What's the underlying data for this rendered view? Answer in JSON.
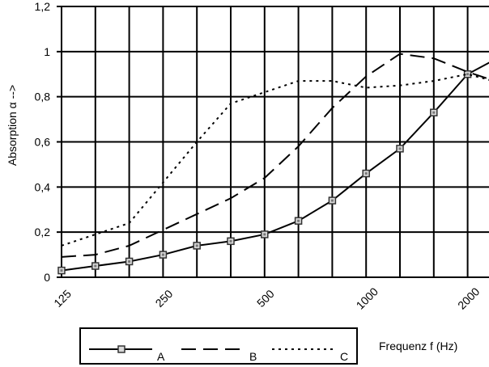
{
  "chart_data": {
    "type": "line",
    "xlabel": "Frequenz  f (Hz)",
    "ylabel": "Absorption  α -->",
    "y_scale": "linear",
    "x_scale": "log2 (third-octave bands)",
    "ylim": [
      0,
      1.2
    ],
    "y_ticks": [
      "0",
      "0,2",
      "0,4",
      "0,6",
      "0,8",
      "1",
      "1,2"
    ],
    "x_tick_labels": [
      "125",
      "250",
      "500",
      "1000",
      "2000"
    ],
    "x": [
      125,
      160,
      200,
      250,
      315,
      400,
      500,
      630,
      800,
      1000,
      1250,
      1600,
      2000,
      2500
    ],
    "grid": true,
    "legend_position": "bottom-left",
    "series": [
      {
        "name": "A",
        "style": "solid",
        "marker": "square",
        "color": "#000000",
        "values": [
          0.03,
          0.05,
          0.07,
          0.1,
          0.14,
          0.16,
          0.19,
          0.25,
          0.34,
          0.46,
          0.57,
          0.73,
          0.9,
          0.98
        ]
      },
      {
        "name": "B",
        "style": "long-dash",
        "marker": "none",
        "color": "#000000",
        "values": [
          0.09,
          0.1,
          0.14,
          0.21,
          0.28,
          0.35,
          0.44,
          0.58,
          0.75,
          0.89,
          0.99,
          0.97,
          0.91,
          0.86
        ]
      },
      {
        "name": "C",
        "style": "dotted",
        "marker": "none",
        "color": "#000000",
        "values": [
          0.14,
          0.19,
          0.24,
          0.42,
          0.6,
          0.77,
          0.82,
          0.87,
          0.87,
          0.84,
          0.85,
          0.87,
          0.9,
          0.86
        ]
      }
    ]
  }
}
